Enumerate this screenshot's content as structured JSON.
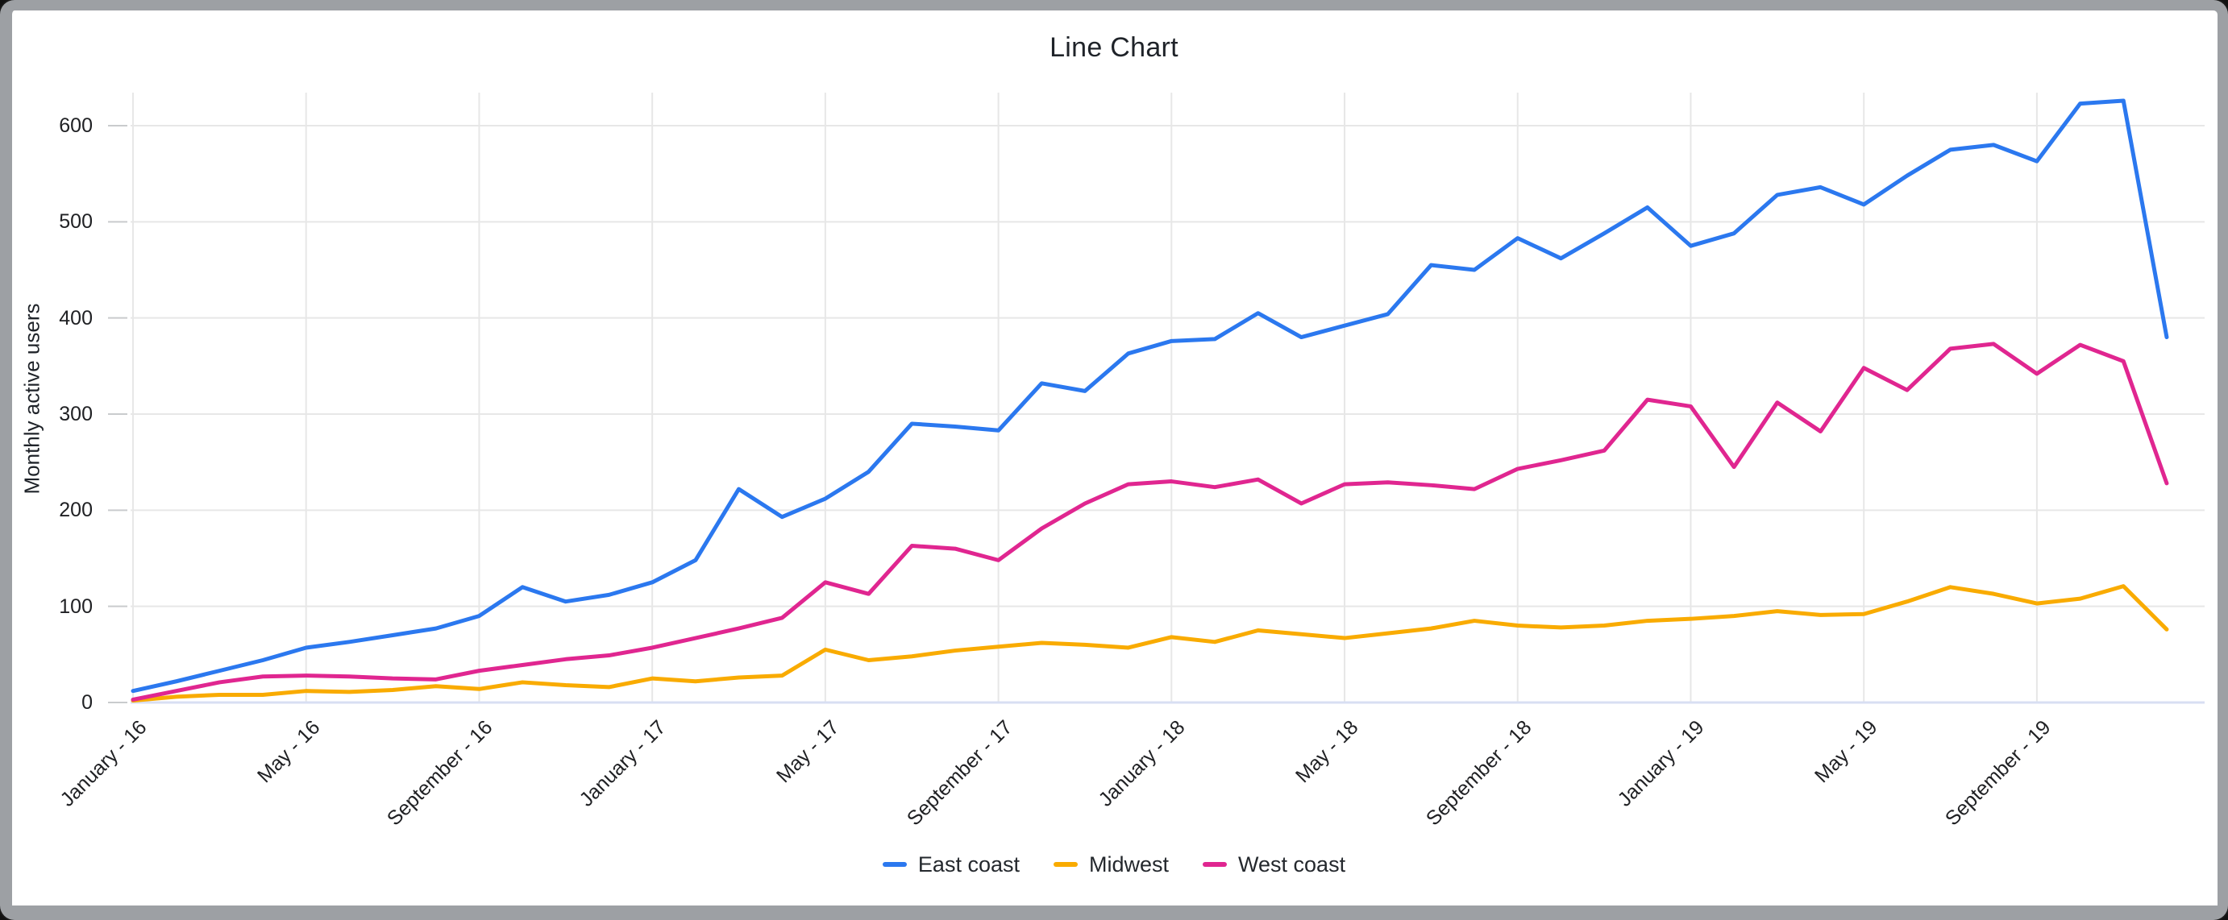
{
  "window": {
    "title": "Line Chart"
  },
  "colors": {
    "frame": "#9da0a4",
    "background": "#ffffff",
    "gridline": "#e7e7e7",
    "zero_line": "#d8dff3",
    "tick_mark": "#c9cbcd",
    "title_text": "#1f2329",
    "tick_text": "#202124",
    "east_coast": "#2b78ef",
    "midwest": "#f9ab00",
    "west_coast": "#e02690"
  },
  "chart_data": {
    "type": "line",
    "title": "Line Chart",
    "xlabel": "",
    "ylabel": "Monthly active users",
    "ylim": [
      0,
      650
    ],
    "yticks": [
      0,
      100,
      200,
      300,
      400,
      500,
      600
    ],
    "grid": true,
    "legend_position": "bottom",
    "n_points": 48,
    "x_unit": "month",
    "x_range_shown": [
      "January - 16",
      "December - 19"
    ],
    "x_tick_month_indices": [
      0,
      4,
      8,
      12,
      16,
      20,
      24,
      28,
      32,
      36,
      40,
      44
    ],
    "x_tick_labels": [
      "January - 16",
      "May - 16",
      "September - 16",
      "January - 17",
      "May - 17",
      "September - 17",
      "January - 18",
      "May - 18",
      "September - 18",
      "January - 19",
      "May - 19",
      "September - 19"
    ],
    "series": [
      {
        "name": "East coast",
        "color_key": "east_coast",
        "values": [
          12,
          22,
          33,
          44,
          57,
          63,
          70,
          77,
          90,
          120,
          105,
          112,
          125,
          148,
          222,
          193,
          212,
          240,
          290,
          287,
          283,
          332,
          324,
          363,
          376,
          378,
          405,
          380,
          392,
          404,
          455,
          450,
          483,
          462,
          488,
          515,
          475,
          488,
          528,
          536,
          518,
          548,
          575,
          580,
          563,
          623,
          626,
          380
        ]
      },
      {
        "name": "Midwest",
        "color_key": "midwest",
        "values": [
          2,
          6,
          8,
          8,
          12,
          11,
          13,
          17,
          14,
          21,
          18,
          16,
          25,
          22,
          26,
          28,
          55,
          44,
          48,
          54,
          58,
          62,
          60,
          57,
          68,
          63,
          75,
          71,
          67,
          72,
          77,
          85,
          80,
          78,
          80,
          85,
          87,
          90,
          95,
          91,
          92,
          105,
          120,
          113,
          103,
          108,
          121,
          76
        ]
      },
      {
        "name": "West coast",
        "color_key": "west_coast",
        "values": [
          3,
          12,
          21,
          27,
          28,
          27,
          25,
          24,
          33,
          39,
          45,
          49,
          57,
          67,
          77,
          88,
          125,
          113,
          163,
          160,
          148,
          181,
          207,
          227,
          230,
          224,
          232,
          207,
          227,
          229,
          226,
          222,
          243,
          252,
          262,
          315,
          308,
          245,
          312,
          282,
          348,
          325,
          368,
          373,
          342,
          372,
          355,
          228
        ]
      }
    ]
  }
}
